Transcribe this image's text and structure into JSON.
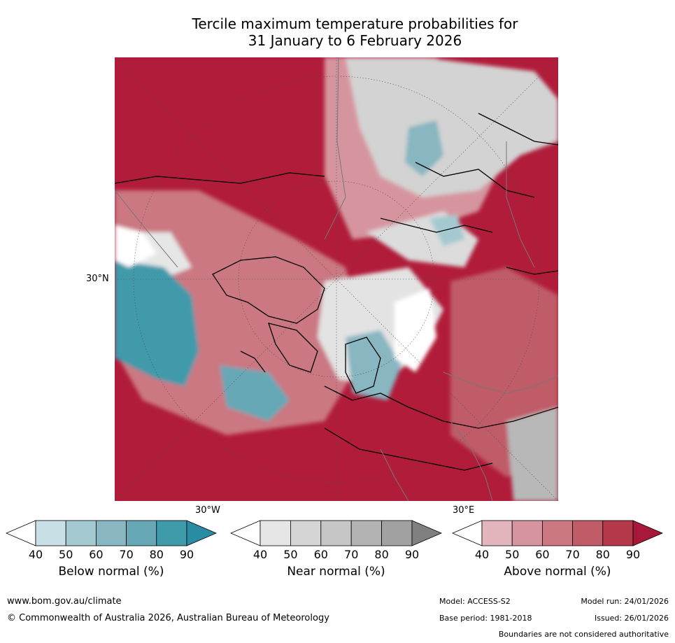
{
  "title": {
    "line1": "Tercile maximum temperature probabilities for",
    "line2": "31 January to 6 February 2026"
  },
  "map": {
    "description_icon": "polar-stereographic-map",
    "lat_label": "30°N",
    "lon_label_left": "30°W",
    "lon_label_right": "30°E"
  },
  "colorbars": [
    {
      "label": "Below normal (%)",
      "ticks": [
        "40",
        "50",
        "60",
        "70",
        "80",
        "90"
      ],
      "colors": [
        "#ffffff",
        "#c9e0e6",
        "#a5c9d0",
        "#88b6c1",
        "#66a8b5",
        "#3f9aaa",
        "#2a8ca3"
      ]
    },
    {
      "label": "Near normal (%)",
      "ticks": [
        "40",
        "50",
        "60",
        "70",
        "80",
        "90"
      ],
      "colors": [
        "#ffffff",
        "#e6e6e6",
        "#d6d6d6",
        "#c6c6c6",
        "#b3b3b3",
        "#a1a1a1",
        "#808080"
      ]
    },
    {
      "label": "Above normal (%)",
      "ticks": [
        "40",
        "50",
        "60",
        "70",
        "80",
        "90"
      ],
      "colors": [
        "#ffffff",
        "#e2b6bc",
        "#d6959e",
        "#cb7882",
        "#c05b68",
        "#b5384a",
        "#a8183a"
      ]
    }
  ],
  "footer": {
    "website": "www.bom.gov.au/climate",
    "copyright": "© Commonwealth of Australia 2026, Australian Bureau of Meteorology",
    "model": "Model: ACCESS-S2",
    "model_run": "Model run: 24/01/2026",
    "base_period": "Base period: 1981-2018",
    "issued": "Issued: 26/01/2026",
    "boundaries_note": "Boundaries are not considered authoritative"
  }
}
